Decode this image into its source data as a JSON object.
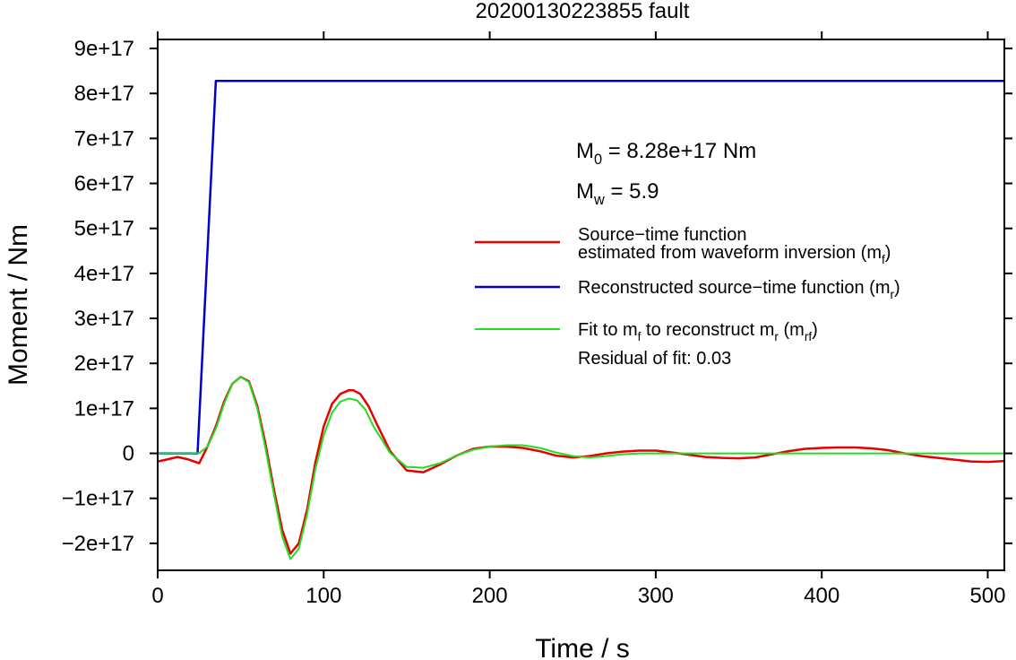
{
  "chart_data": {
    "type": "line",
    "title": "20200130223855 fault",
    "xlabel": "Time / s",
    "ylabel": "Moment / Nm",
    "xlim": [
      0,
      510
    ],
    "ylim": [
      -2.6e+17,
      9.2e+17
    ],
    "xticks": [
      0,
      100,
      200,
      300,
      400,
      500
    ],
    "xtick_labels": [
      "0",
      "100",
      "200",
      "300",
      "400",
      "500"
    ],
    "yticks": [
      -2e+17,
      -1e+17,
      0,
      1e+17,
      2e+17,
      3e+17,
      4e+17,
      5e+17,
      6e+17,
      7e+17,
      8e+17,
      9e+17
    ],
    "ytick_labels": [
      "−2e+17",
      "−1e+17",
      "0",
      "1e+17",
      "2e+17",
      "3e+17",
      "4e+17",
      "5e+17",
      "6e+17",
      "7e+17",
      "8e+17",
      "9e+17"
    ],
    "grid": false,
    "legend_position": "center-right",
    "annotations": {
      "m0": {
        "label": "M",
        "sub": "0",
        "text": " = 8.28e+17 Nm"
      },
      "mw": {
        "label": "M",
        "sub": "w",
        "text": " = 5.9"
      },
      "residual": "Residual of fit: 0.03"
    },
    "series": [
      {
        "name": "Source−time function estimated from waveform inversion (mᶠ)",
        "legend_lines": [
          [
            {
              "t": "Source−time function"
            }
          ],
          [
            {
              "t": "estimated from waveform inversion (m"
            },
            {
              "sub": "f"
            },
            {
              "t": ")"
            }
          ]
        ],
        "color": "#e60000",
        "width": 2.5,
        "x": [
          0,
          5,
          12,
          18,
          25,
          30,
          35,
          40,
          45,
          50,
          55,
          60,
          65,
          70,
          75,
          80,
          85,
          90,
          95,
          100,
          105,
          110,
          115,
          118,
          122,
          127,
          132,
          140,
          150,
          160,
          170,
          180,
          190,
          200,
          210,
          220,
          230,
          240,
          250,
          260,
          270,
          280,
          290,
          300,
          310,
          320,
          330,
          340,
          350,
          360,
          370,
          380,
          390,
          400,
          410,
          420,
          430,
          440,
          450,
          460,
          470,
          480,
          490,
          500,
          510
        ],
        "y": [
          -1.8e+16,
          -1.4e+16,
          -8000000000000000.0,
          -1.3e+16,
          -2.2e+16,
          1.5e+16,
          6e+16,
          1.15e+17,
          1.55e+17,
          1.7e+17,
          1.6e+17,
          1.05e+17,
          2e+16,
          -8e+16,
          -1.7e+17,
          -2.23e+17,
          -2e+17,
          -1.25e+17,
          -2e+16,
          6e+16,
          1.1e+17,
          1.32e+17,
          1.4e+17,
          1.4e+17,
          1.32e+17,
          1.05e+17,
          6.5e+16,
          5000000000000000.0,
          -3.8e+16,
          -4.2e+16,
          -2.5e+16,
          -5000000000000000.0,
          1e+16,
          1.5e+16,
          1.5e+16,
          1.2e+16,
          5000000000000000.0,
          -5000000000000000.0,
          -9000000000000000.0,
          -6000000000000000.0,
          0,
          4000000000000000.0,
          6000000000000000.0,
          6000000000000000.0,
          2000000000000000.0,
          -3000000000000000.0,
          -8000000000000000.0,
          -1e+16,
          -1.1e+16,
          -9000000000000000.0,
          -2000000000000000.0,
          5000000000000000.0,
          1e+16,
          1.2e+16,
          1.3e+16,
          1.3e+16,
          1.1e+16,
          7000000000000000.0,
          0,
          -6000000000000000.0,
          -1e+16,
          -1.4e+16,
          -1.8e+16,
          -1.9e+16,
          -1.7e+16
        ]
      },
      {
        "name": "Reconstructed source−time function (mᵣ)",
        "legend_lines": [
          [
            {
              "t": "Reconstructed source−time function (m"
            },
            {
              "sub": "r"
            },
            {
              "t": ")"
            }
          ]
        ],
        "color": "#0000cc",
        "width": 2.5,
        "x": [
          0,
          24,
          35,
          510
        ],
        "y": [
          0,
          0,
          8.28e+17,
          8.28e+17
        ]
      },
      {
        "name": "Fit to mᶠ to reconstruct mᵣ (mᵣᶠ)",
        "legend_lines": [
          [
            {
              "t": "Fit to m"
            },
            {
              "sub": "f"
            },
            {
              "t": " to reconstruct m"
            },
            {
              "sub": "r"
            },
            {
              "t": " (m"
            },
            {
              "sub": "rf"
            },
            {
              "t": ")"
            }
          ]
        ],
        "color": "#22dd22",
        "width": 2,
        "x": [
          0,
          20,
          25,
          30,
          35,
          40,
          45,
          50,
          55,
          60,
          65,
          70,
          75,
          80,
          85,
          90,
          95,
          100,
          105,
          110,
          115,
          120,
          125,
          130,
          140,
          150,
          160,
          170,
          180,
          190,
          200,
          210,
          220,
          230,
          240,
          250,
          260,
          270,
          280,
          290,
          300,
          310,
          320,
          340,
          360,
          380,
          400,
          420,
          440,
          460,
          480,
          500,
          510
        ],
        "y": [
          0,
          0,
          500000000000000.0,
          1.5e+16,
          5.5e+16,
          1.1e+17,
          1.55e+17,
          1.7e+17,
          1.58e+17,
          1e+17,
          1e+16,
          -9e+16,
          -1.85e+17,
          -2.35e+17,
          -2.12e+17,
          -1.35e+17,
          -3.5e+16,
          4e+16,
          9e+16,
          1.15e+17,
          1.22e+17,
          1.18e+17,
          9.8e+16,
          6e+16,
          1000000000000000.0,
          -3e+16,
          -3.2e+16,
          -2.2e+16,
          -5000000000000000.0,
          8000000000000000.0,
          1.5e+16,
          1.8e+16,
          1.8e+16,
          1.2e+16,
          2000000000000000.0,
          -6000000000000000.0,
          -9000000000000000.0,
          -6000000000000000.0,
          -2000000000000000.0,
          0,
          0,
          0,
          0,
          0,
          0,
          0,
          0,
          0,
          0,
          0,
          0,
          0,
          0
        ]
      }
    ]
  }
}
